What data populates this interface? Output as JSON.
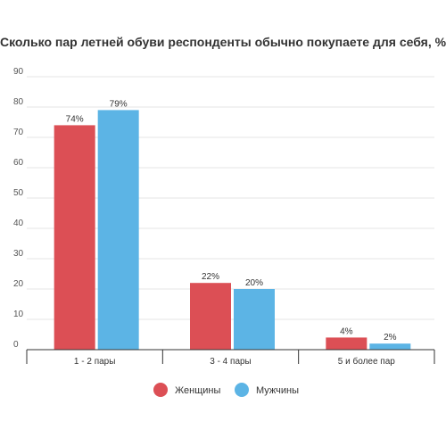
{
  "chart_data": {
    "type": "bar",
    "title": "Сколько пар летней обуви респонденты обычно покупаете для себя, %",
    "categories": [
      "1 - 2 пары",
      "3 - 4 пары",
      "5 и более пар"
    ],
    "series": [
      {
        "name": "Женщины",
        "values": [
          74,
          22,
          4
        ],
        "labels": [
          "74%",
          "22%",
          "4%"
        ],
        "color": "#dc4f55"
      },
      {
        "name": "Мужчины",
        "values": [
          79,
          20,
          2
        ],
        "labels": [
          "79%",
          "20%",
          "2%"
        ],
        "color": "#5cb4e5"
      }
    ],
    "yticks": [
      "0",
      "10",
      "20",
      "30",
      "40",
      "50",
      "60",
      "70",
      "80",
      "90"
    ],
    "ylim": [
      0,
      90
    ],
    "grid": true,
    "legend": "bottom"
  }
}
